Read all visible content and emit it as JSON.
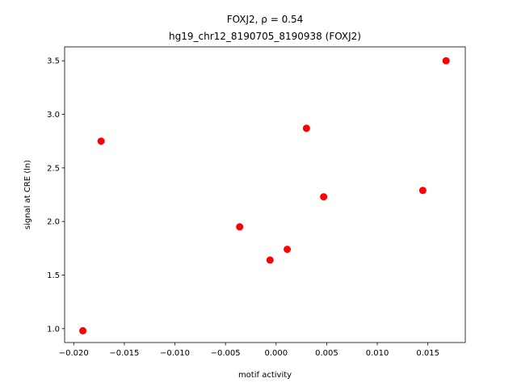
{
  "chart_data": {
    "type": "scatter",
    "title": "FOXJ2, ρ = 0.54",
    "subtitle": "hg19_chr12_8190705_8190938 (FOXJ2)",
    "x_label": "motif activity",
    "y_label": "signal at CRE (ln)",
    "color": "#ff0000",
    "series": [
      {
        "x": [
          -0.0191,
          -0.0173,
          -0.0036,
          -0.0006,
          0.0011,
          0.003,
          0.0047,
          0.0145,
          0.0168
        ],
        "values": [
          0.98,
          2.75,
          1.95,
          1.64,
          1.74,
          2.87,
          2.23,
          2.29,
          3.5
        ]
      }
    ],
    "xlim": [
      -0.0209,
      0.0187
    ],
    "ylim": [
      0.87,
      3.63
    ],
    "xticks": [
      {
        "value": -0.02,
        "label": "−0.020"
      },
      {
        "value": -0.015,
        "label": "−0.015"
      },
      {
        "value": -0.01,
        "label": "−0.010"
      },
      {
        "value": -0.005,
        "label": "−0.005"
      },
      {
        "value": 0,
        "label": "0.000"
      },
      0.005,
      {
        "value": 0.01,
        "label": "0.010"
      },
      0.015
    ],
    "yticks": [
      {
        "value": 1,
        "label": "1.0"
      },
      1.5,
      {
        "value": 2,
        "label": "2.0"
      },
      2.5,
      {
        "value": 3,
        "label": "3.0"
      },
      3.5
    ]
  }
}
